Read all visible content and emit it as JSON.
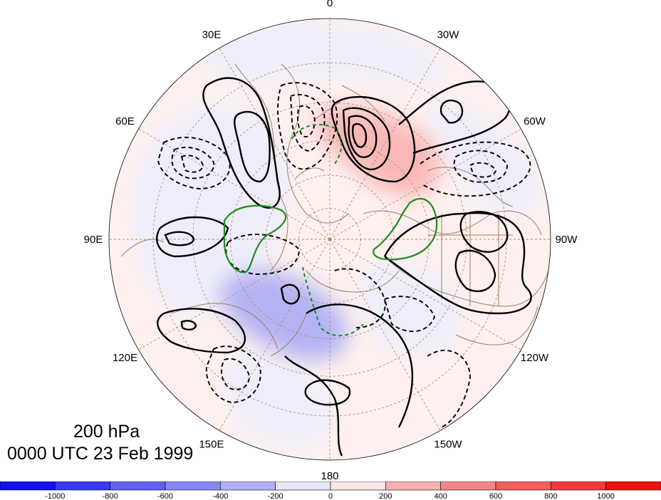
{
  "map": {
    "projection": "north polar stereographic",
    "level_label": "200 hPa",
    "time_label": "0000 UTC 23 Feb 1999",
    "longitude_labels": [
      {
        "text": "0",
        "lon": 0
      },
      {
        "text": "30W",
        "lon": -30
      },
      {
        "text": "60W",
        "lon": -60
      },
      {
        "text": "90W",
        "lon": -90
      },
      {
        "text": "120W",
        "lon": -120
      },
      {
        "text": "150W",
        "lon": -150
      },
      {
        "text": "180",
        "lon": 180
      },
      {
        "text": "150E",
        "lon": 150
      },
      {
        "text": "120E",
        "lon": 120
      },
      {
        "text": "90E",
        "lon": 90
      },
      {
        "text": "60E",
        "lon": 60
      },
      {
        "text": "30E",
        "lon": 30
      }
    ],
    "colors": {
      "coast": "#9b7f64",
      "grid": "#b08a6e",
      "contour_solid": "#000000",
      "contour_dashed": "#000000",
      "green_contour": "#1e8c1e"
    }
  },
  "colorbar": {
    "tick_labels": [
      "-1000",
      "-800",
      "-600",
      "-400",
      "-200",
      "0",
      "200",
      "400",
      "600",
      "800",
      "1000"
    ],
    "colors": [
      "#1212ee",
      "#3a3af0",
      "#6060f2",
      "#8787f5",
      "#b1b1f8",
      "#e6e6fb",
      "#fbe6e6",
      "#f8b1b1",
      "#f48686",
      "#f25e5e",
      "#f03a3a",
      "#ee1212"
    ]
  }
}
